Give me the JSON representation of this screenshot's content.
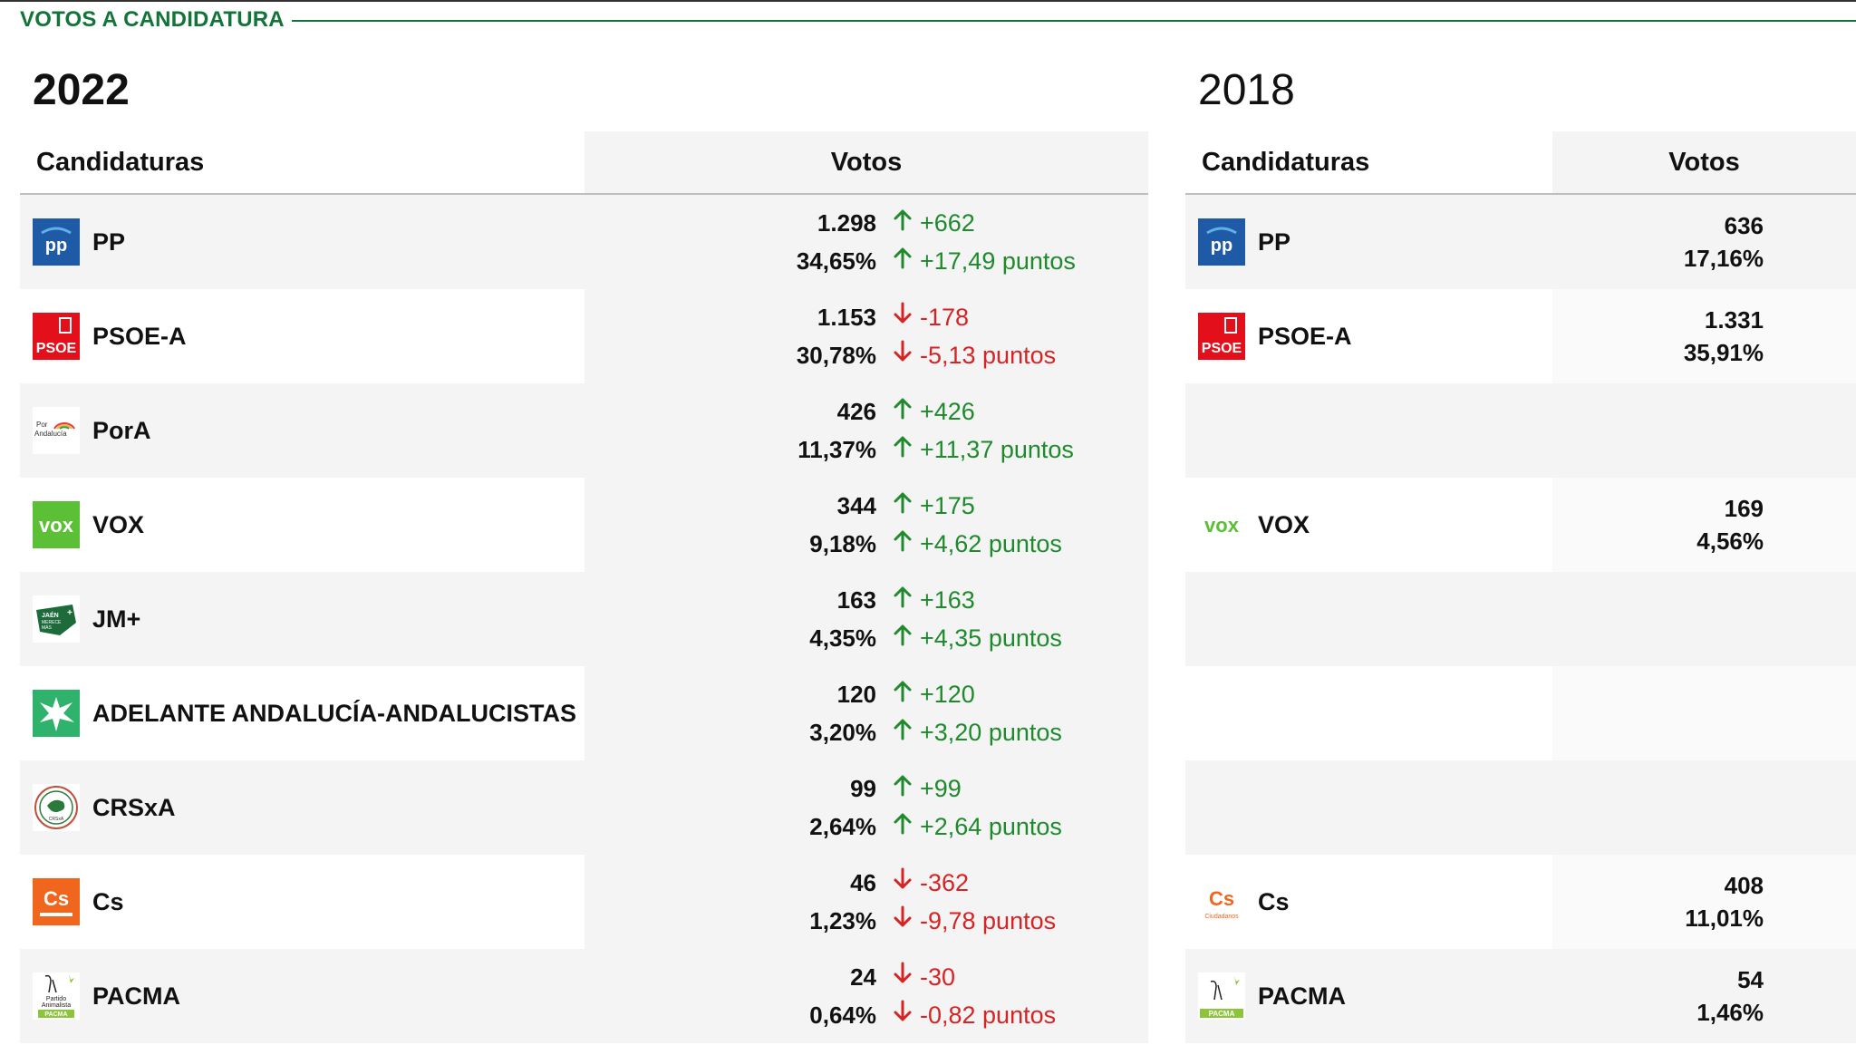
{
  "section_title": "VOTOS A CANDIDATURA",
  "colors": {
    "brand_green": "#13743a",
    "up": "#1e8a2c",
    "down": "#d62424",
    "row_shade": "#f4f4f5"
  },
  "left": {
    "year": "2022",
    "header": {
      "candidaturas": "Candidaturas",
      "votos": "Votos"
    },
    "rows": [
      {
        "name": "PP",
        "logo": "pp-logo",
        "votes": "1.298",
        "pct": "34,65%",
        "diff_votes": "+662",
        "diff_pct": "+17,49 puntos",
        "trend": "up"
      },
      {
        "name": "PSOE-A",
        "logo": "psoe-logo",
        "votes": "1.153",
        "pct": "30,78%",
        "diff_votes": "-178",
        "diff_pct": "-5,13 puntos",
        "trend": "down"
      },
      {
        "name": "PorA",
        "logo": "pora-logo",
        "logo_text": "Por Andalucía",
        "votes": "426",
        "pct": "11,37%",
        "diff_votes": "+426",
        "diff_pct": "+11,37 puntos",
        "trend": "up"
      },
      {
        "name": "VOX",
        "logo": "vox-logo",
        "logo_text": "VOX",
        "votes": "344",
        "pct": "9,18%",
        "diff_votes": "+175",
        "diff_pct": "+4,62 puntos",
        "trend": "up"
      },
      {
        "name": "JM+",
        "logo": "jm-logo",
        "logo_text": "JAÉN MERECE MÁS",
        "votes": "163",
        "pct": "4,35%",
        "diff_votes": "+163",
        "diff_pct": "+4,35 puntos",
        "trend": "up"
      },
      {
        "name": "ADELANTE ANDALUCÍA-ANDALUCISTAS",
        "logo": "adelante-logo",
        "votes": "120",
        "pct": "3,20%",
        "diff_votes": "+120",
        "diff_pct": "+3,20 puntos",
        "trend": "up"
      },
      {
        "name": "CRSxA",
        "logo": "crsxa-logo",
        "logo_text": "CRSxA",
        "votes": "99",
        "pct": "2,64%",
        "diff_votes": "+99",
        "diff_pct": "+2,64 puntos",
        "trend": "up"
      },
      {
        "name": "Cs",
        "logo": "cs-logo",
        "logo_text": "Cs",
        "votes": "46",
        "pct": "1,23%",
        "diff_votes": "-362",
        "diff_pct": "-9,78 puntos",
        "trend": "down"
      },
      {
        "name": "PACMA",
        "logo": "pacma-logo",
        "logo_text": "Partido Animalista PACMA",
        "votes": "24",
        "pct": "0,64%",
        "diff_votes": "-30",
        "diff_pct": "-0,82 puntos",
        "trend": "down"
      }
    ]
  },
  "right": {
    "year": "2018",
    "header": {
      "candidaturas": "Candidaturas",
      "votos": "Votos"
    },
    "rows": [
      {
        "name": "PP",
        "logo": "pp-logo",
        "votes": "636",
        "pct": "17,16%"
      },
      {
        "name": "PSOE-A",
        "logo": "psoe-logo",
        "votes": "1.331",
        "pct": "35,91%"
      },
      {
        "name": "",
        "logo": "",
        "votes": "",
        "pct": ""
      },
      {
        "name": "VOX",
        "logo": "vox-logo",
        "logo_text": "VOX",
        "votes": "169",
        "pct": "4,56%"
      },
      {
        "name": "",
        "logo": "",
        "votes": "",
        "pct": ""
      },
      {
        "name": "",
        "logo": "",
        "votes": "",
        "pct": ""
      },
      {
        "name": "",
        "logo": "",
        "votes": "",
        "pct": ""
      },
      {
        "name": "Cs",
        "logo": "cs-logo",
        "logo_text": "Cs",
        "logo_subtext": "Ciudadanos",
        "votes": "408",
        "pct": "11,01%"
      },
      {
        "name": "PACMA",
        "logo": "pacma-logo",
        "logo_text": "PACMA",
        "votes": "54",
        "pct": "1,46%"
      }
    ]
  }
}
